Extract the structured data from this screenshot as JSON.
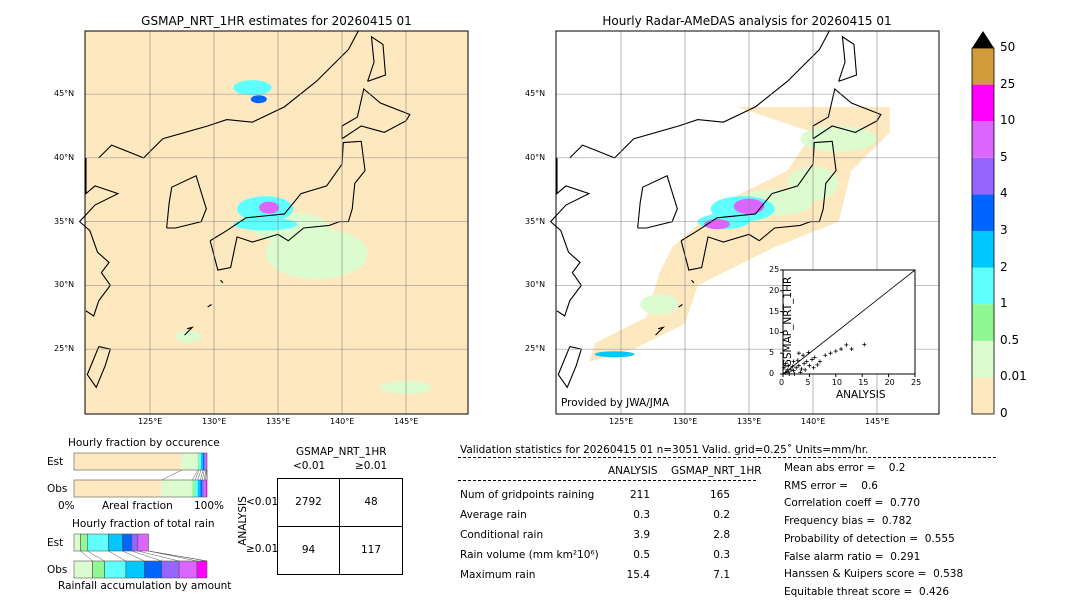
{
  "map_left": {
    "title": "GSMAP_NRT_1HR estimates for 20260415 01"
  },
  "map_right": {
    "title": "Hourly Radar-AMeDAS analysis for 20260415 01",
    "credit": "Provided by JWA/JMA"
  },
  "lat_labels": [
    "45°N",
    "40°N",
    "35°N",
    "30°N",
    "25°N"
  ],
  "lon_labels": [
    "125°E",
    "130°E",
    "135°E",
    "140°E",
    "145°E"
  ],
  "colorbar": {
    "labels": [
      "50",
      "25",
      "10",
      "5",
      "4",
      "3",
      "2",
      "1",
      "0.5",
      "0.01",
      "0"
    ],
    "colors": [
      "#fee8c0",
      "#dcfcd0",
      "#90f890",
      "#60ffff",
      "#00c8ff",
      "#0064ff",
      "#9664ff",
      "#dc64ff",
      "#ff00ff",
      "#d29b3c"
    ],
    "extend_color": "#000000"
  },
  "chart_data": [
    {
      "type": "scatter",
      "xlabel": "ANALYSIS",
      "ylabel": "GSMAP_NRT_1HR",
      "xlim": [
        0,
        25
      ],
      "ylim": [
        0,
        25
      ],
      "ticks": [
        "0",
        "5",
        "10",
        "15",
        "20",
        "25"
      ],
      "points": [
        [
          0.5,
          0.3
        ],
        [
          1,
          0.5
        ],
        [
          1.5,
          1
        ],
        [
          2,
          0.8
        ],
        [
          2.5,
          1.5
        ],
        [
          3,
          2
        ],
        [
          3.5,
          1.2
        ],
        [
          4,
          2.5
        ],
        [
          4.5,
          3
        ],
        [
          5,
          2
        ],
        [
          5.5,
          3.5
        ],
        [
          6,
          4
        ],
        [
          7,
          3
        ],
        [
          8,
          4.5
        ],
        [
          9,
          5
        ],
        [
          10,
          5.5
        ],
        [
          11,
          6
        ],
        [
          12,
          7
        ],
        [
          13,
          6
        ],
        [
          15.4,
          7.1
        ],
        [
          1,
          2
        ],
        [
          2,
          3
        ],
        [
          3,
          5
        ],
        [
          0.2,
          1.5
        ],
        [
          0.5,
          2.5
        ],
        [
          1.2,
          0
        ],
        [
          2.2,
          0
        ],
        [
          3.3,
          0.4
        ],
        [
          4.2,
          1
        ],
        [
          0.8,
          1
        ],
        [
          1.8,
          1.8
        ],
        [
          2.8,
          3.3
        ],
        [
          3.8,
          4.5
        ],
        [
          4.8,
          5.2
        ],
        [
          5.8,
          1.5
        ],
        [
          6.5,
          2.2
        ]
      ]
    },
    {
      "type": "bar",
      "title": "Hourly fraction by occurence",
      "xlabel": "Areal fraction",
      "x_tick_labels": [
        "0%",
        "100%"
      ],
      "categories": [
        "Est",
        "Obs"
      ],
      "series_percent": {
        "Est": [
          81,
          12,
          1,
          1.5,
          1.5,
          1,
          1,
          0.5,
          0.5,
          0
        ],
        "Obs": [
          66,
          23,
          2,
          2,
          2,
          1.5,
          1.5,
          1,
          1,
          0
        ]
      }
    },
    {
      "type": "bar",
      "title": "Hourly fraction of total rain",
      "xlabel": "Rainfall accumulation by amount",
      "categories": [
        "Est",
        "Obs"
      ],
      "series_percent": {
        "Est": [
          5,
          5,
          16,
          10.5,
          7,
          4.5,
          8,
          0,
          0
        ],
        "Obs": [
          14,
          9,
          16,
          14,
          13,
          13,
          13.5,
          7.5,
          0
        ]
      }
    }
  ],
  "contingency": {
    "title": "GSMAP_NRT_1HR",
    "col_headers": [
      "<0.01",
      "≥0.01"
    ],
    "row_axis": "ANALYSIS",
    "row_headers": [
      "<0.01",
      "≥0.01"
    ],
    "cells": [
      [
        "2792",
        "48"
      ],
      [
        "94",
        "117"
      ]
    ]
  },
  "stats": {
    "header": "Validation statistics for 20260415 01  n=3051 Valid. grid=0.25˚ Units=mm/hr.",
    "col_analysis": "ANALYSIS",
    "col_gsmap": "GSMAP_NRT_1HR",
    "rows": [
      {
        "label": "Num of gridpoints raining",
        "a": "211",
        "g": "165"
      },
      {
        "label": "Average rain",
        "a": "0.3",
        "g": "0.2"
      },
      {
        "label": "Conditional rain",
        "a": "3.9",
        "g": "2.8"
      },
      {
        "label": "Rain volume (mm km²10⁶)",
        "a": "0.5",
        "g": "0.3"
      },
      {
        "label": "Maximum rain",
        "a": "15.4",
        "g": "7.1"
      }
    ],
    "scores": [
      "Mean abs error =    0.2",
      "RMS error =    0.6",
      "Correlation coeff =  0.770",
      "Frequency bias =  0.782",
      "Probability of detection =  0.555",
      "False alarm ratio =  0.291",
      "Hanssen & Kuipers score =  0.538",
      "Equitable threat score =  0.426"
    ]
  }
}
